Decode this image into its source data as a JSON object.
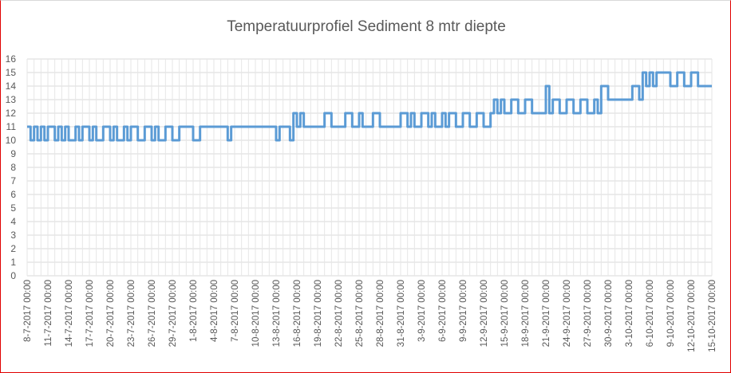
{
  "chart_data": {
    "type": "line",
    "title": "Temperatuurprofiel Sediment 8 mtr diepte",
    "xlabel": "",
    "ylabel": "",
    "ylim": [
      0,
      16
    ],
    "yticks": [
      0,
      1,
      2,
      3,
      4,
      5,
      6,
      7,
      8,
      9,
      10,
      11,
      12,
      13,
      14,
      15,
      16
    ],
    "grid": true,
    "legend": "none",
    "line_color": "#5b9bd5",
    "x_range": [
      "2017-07-08 00:00",
      "2017-10-15 00:00"
    ],
    "x_tick_labels": [
      "8-7-2017 00:00",
      "11-7-2017 00:00",
      "14-7-2017 00:00",
      "17-7-2017 00:00",
      "20-7-2017 00:00",
      "23-7-2017 00:00",
      "26-7-2017 00:00",
      "29-7-2017 00:00",
      "1-8-2017 00:00",
      "4-8-2017 00:00",
      "7-8-2017 00:00",
      "10-8-2017 00:00",
      "13-8-2017 00:00",
      "16-8-2017 00:00",
      "19-8-2017 00:00",
      "22-8-2017 00:00",
      "25-8-2017 00:00",
      "28-8-2017 00:00",
      "31-8-2017 00:00",
      "3-9-2017 00:00",
      "6-9-2017 00:00",
      "9-9-2017 00:00",
      "12-9-2017 00:00",
      "15-9-2017 00:00",
      "18-9-2017 00:00",
      "21-9-2017 00:00",
      "24-9-2017 00:00",
      "27-9-2017 00:00",
      "30-9-2017 00:00",
      "3-10-2017 00:00",
      "6-10-2017 00:00",
      "9-10-2017 00:00",
      "12-10-2017 00:00",
      "15-10-2017 00:00"
    ],
    "series": [
      {
        "x": [
          "2017-07-08",
          "2017-07-08 12:00",
          "2017-07-09",
          "2017-07-09 12:00",
          "2017-07-10",
          "2017-07-10 12:00",
          "2017-07-11",
          "2017-07-12",
          "2017-07-12 12:00",
          "2017-07-13",
          "2017-07-13 12:00",
          "2017-07-14",
          "2017-07-15",
          "2017-07-15 12:00",
          "2017-07-16",
          "2017-07-17",
          "2017-07-17 12:00",
          "2017-07-18",
          "2017-07-19",
          "2017-07-20",
          "2017-07-20 12:00",
          "2017-07-21",
          "2017-07-22",
          "2017-07-22 12:00",
          "2017-07-23",
          "2017-07-24",
          "2017-07-25",
          "2017-07-26",
          "2017-07-26 12:00",
          "2017-07-27",
          "2017-07-28",
          "2017-07-29",
          "2017-07-30",
          "2017-07-31",
          "2017-08-01",
          "2017-08-02",
          "2017-08-02 12:00",
          "2017-08-03",
          "2017-08-05",
          "2017-08-06",
          "2017-08-06 12:00",
          "2017-08-07",
          "2017-08-09",
          "2017-08-12",
          "2017-08-13",
          "2017-08-13 12:00",
          "2017-08-14",
          "2017-08-15",
          "2017-08-15 12:00",
          "2017-08-16",
          "2017-08-16 12:00",
          "2017-08-17",
          "2017-08-18",
          "2017-08-19",
          "2017-08-20",
          "2017-08-21",
          "2017-08-22",
          "2017-08-23",
          "2017-08-24",
          "2017-08-25",
          "2017-08-25 12:00",
          "2017-08-26",
          "2017-08-27",
          "2017-08-28",
          "2017-08-29",
          "2017-08-30",
          "2017-08-31",
          "2017-09-01",
          "2017-09-01 12:00",
          "2017-09-02",
          "2017-09-03",
          "2017-09-04",
          "2017-09-04 12:00",
          "2017-09-05",
          "2017-09-06",
          "2017-09-06 12:00",
          "2017-09-07",
          "2017-09-08",
          "2017-09-09",
          "2017-09-10",
          "2017-09-11",
          "2017-09-12",
          "2017-09-13",
          "2017-09-13 12:00",
          "2017-09-14",
          "2017-09-14 12:00",
          "2017-09-15",
          "2017-09-16",
          "2017-09-17",
          "2017-09-18",
          "2017-09-19",
          "2017-09-20",
          "2017-09-21",
          "2017-09-21 12:00",
          "2017-09-22",
          "2017-09-23",
          "2017-09-24",
          "2017-09-25",
          "2017-09-26",
          "2017-09-27",
          "2017-09-28",
          "2017-09-28 12:00",
          "2017-09-29",
          "2017-09-30",
          "2017-10-01",
          "2017-10-02",
          "2017-10-03",
          "2017-10-03 12:00",
          "2017-10-04",
          "2017-10-04 12:00",
          "2017-10-05",
          "2017-10-05 12:00",
          "2017-10-06",
          "2017-10-06 12:00",
          "2017-10-07",
          "2017-10-08",
          "2017-10-09",
          "2017-10-10",
          "2017-10-11",
          "2017-10-12",
          "2017-10-13",
          "2017-10-14",
          "2017-10-15"
        ],
        "y": [
          11,
          10,
          11,
          10,
          11,
          10,
          11,
          10,
          11,
          10,
          11,
          10,
          11,
          10,
          11,
          10,
          11,
          10,
          11,
          10,
          11,
          10,
          11,
          10,
          11,
          10,
          11,
          10,
          11,
          10,
          11,
          10,
          11,
          11,
          10,
          11,
          11,
          11,
          11,
          10,
          11,
          11,
          11,
          11,
          10,
          11,
          11,
          10,
          12,
          11,
          12,
          11,
          11,
          11,
          12,
          11,
          11,
          12,
          11,
          12,
          11,
          11,
          12,
          11,
          11,
          11,
          12,
          11,
          12,
          11,
          12,
          11,
          12,
          11,
          12,
          11,
          12,
          11,
          12,
          11,
          12,
          11,
          12,
          13,
          12,
          13,
          12,
          13,
          12,
          13,
          12,
          12,
          14,
          12,
          13,
          12,
          13,
          12,
          13,
          12,
          13,
          12,
          14,
          13,
          13,
          13,
          13,
          14,
          14,
          13,
          15,
          14,
          15,
          14,
          15,
          15,
          14,
          15,
          14,
          15,
          14,
          14,
          14
        ]
      }
    ]
  }
}
